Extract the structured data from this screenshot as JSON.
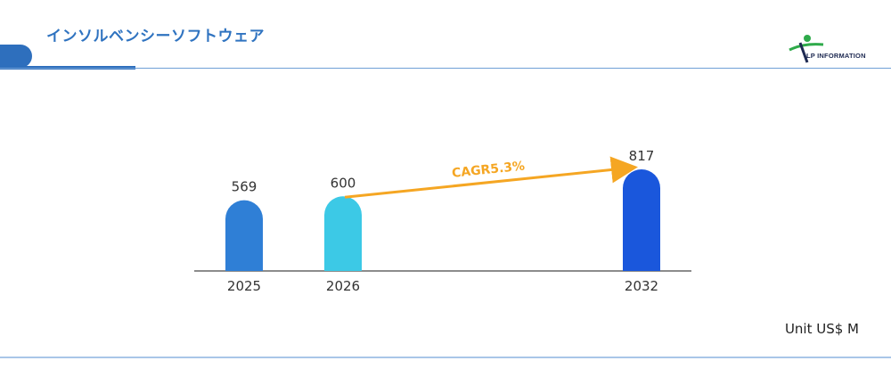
{
  "header": {
    "title": "インソルベンシーソフトウェア"
  },
  "logo": {
    "text": "LP INFORMATION"
  },
  "unit_label": "Unit US$ M",
  "annotation": {
    "cagr_label": "CAGR5.3%",
    "from_category": "2026",
    "to_category": "2032"
  },
  "colors": {
    "accent": "#2e6fbd",
    "cagr_arrow": "#f5a623",
    "bar_2025": "#2f7fd6",
    "bar_2026": "#3cc9e6",
    "bar_2032": "#1a57dc"
  },
  "chart_data": {
    "type": "bar",
    "categories": [
      "2025",
      "2026",
      "2032"
    ],
    "values": [
      569,
      600,
      817
    ],
    "bar_colors": [
      "#2f7fd6",
      "#3cc9e6",
      "#1a57dc"
    ],
    "title": "",
    "xlabel": "",
    "ylabel": "",
    "grid": false,
    "legend": "none"
  }
}
